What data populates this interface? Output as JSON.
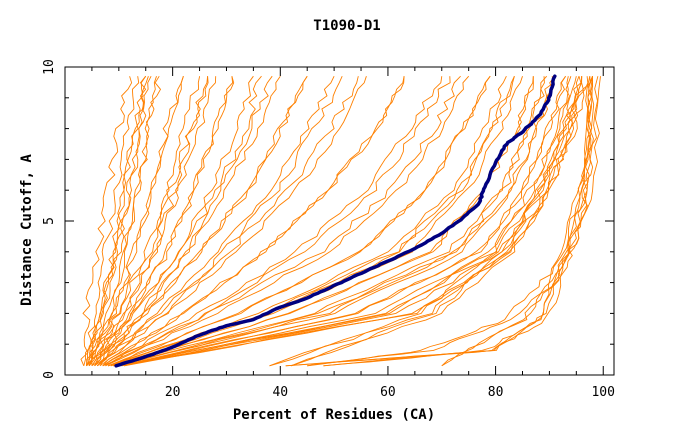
{
  "chart_data": {
    "type": "line",
    "title": "T1090-D1",
    "xlabel": "Percent of Residues (CA)",
    "ylabel": "Distance Cutoff, A",
    "xlim": [
      0,
      102
    ],
    "ylim": [
      0,
      10
    ],
    "x_ticks": [
      0,
      20,
      40,
      60,
      80,
      100
    ],
    "y_ticks": [
      0,
      5,
      10
    ],
    "x_tick_labels": [
      "0",
      "20",
      "40",
      "60",
      "80",
      "100"
    ],
    "y_tick_labels": [
      "0",
      "5",
      "10"
    ],
    "grid": false,
    "legend": "none",
    "highlight_color": "#000080",
    "background_color": "#ff8000",
    "background_models": [
      {
        "x": [
          3.5,
          5.5,
          7.5,
          9.5,
          11.5,
          13.5
        ],
        "y": [
          0.3,
          2.0,
          4.0,
          6.0,
          8.0,
          9.7
        ]
      },
      {
        "x": [
          4.0,
          6.5,
          9.0,
          11.0,
          13.0,
          15.0
        ],
        "y": [
          0.3,
          2.0,
          4.0,
          6.0,
          8.0,
          9.7
        ]
      },
      {
        "x": [
          4.0,
          7.0,
          10.0,
          12.0,
          14.0,
          16.0
        ],
        "y": [
          0.3,
          2.0,
          4.0,
          6.0,
          8.0,
          9.7
        ]
      },
      {
        "x": [
          4.5,
          8.0,
          11.0,
          13.5,
          15.5,
          17.0
        ],
        "y": [
          0.3,
          2.0,
          4.0,
          6.0,
          8.0,
          9.7
        ]
      },
      {
        "x": [
          4.0,
          9.0,
          13.0,
          16.0,
          19.0,
          22.0
        ],
        "y": [
          0.3,
          2.0,
          4.0,
          6.0,
          8.0,
          9.7
        ]
      },
      {
        "x": [
          4.5,
          10.0,
          15.0,
          19.0,
          22.0,
          25.0
        ],
        "y": [
          0.3,
          2.0,
          4.0,
          6.0,
          8.0,
          9.7
        ]
      },
      {
        "x": [
          5.0,
          11.0,
          17.0,
          21.0,
          25.0,
          28.0
        ],
        "y": [
          0.3,
          2.0,
          4.0,
          6.0,
          8.0,
          9.7
        ]
      },
      {
        "x": [
          5.0,
          12.0,
          19.0,
          24.0,
          28.0,
          31.0
        ],
        "y": [
          0.3,
          2.0,
          4.0,
          6.0,
          8.0,
          9.7
        ]
      },
      {
        "x": [
          5.5,
          13.0,
          21.0,
          27.0,
          32.0,
          35.0
        ],
        "y": [
          0.3,
          2.0,
          4.0,
          6.0,
          8.0,
          9.7
        ]
      },
      {
        "x": [
          5.5,
          14.0,
          23.0,
          30.0,
          36.0,
          40.0
        ],
        "y": [
          0.3,
          2.0,
          4.0,
          6.0,
          8.0,
          9.7
        ]
      },
      {
        "x": [
          6.0,
          15.0,
          25.0,
          34.0,
          40.0,
          45.0
        ],
        "y": [
          0.3,
          2.0,
          4.0,
          6.0,
          8.0,
          9.7
        ]
      },
      {
        "x": [
          6.0,
          17.0,
          28.0,
          38.0,
          45.0,
          50.0
        ],
        "y": [
          0.3,
          2.0,
          4.0,
          6.0,
          8.0,
          9.7
        ]
      },
      {
        "x": [
          6.5,
          19.0,
          32.0,
          43.0,
          51.0,
          56.0
        ],
        "y": [
          0.3,
          2.0,
          4.0,
          6.0,
          8.0,
          9.7
        ]
      },
      {
        "x": [
          7.0,
          22.0,
          37.0,
          49.0,
          58.0,
          63.0
        ],
        "y": [
          0.3,
          2.0,
          4.0,
          6.0,
          8.0,
          9.7
        ]
      },
      {
        "x": [
          7.0,
          25.0,
          43.0,
          56.0,
          64.0,
          70.0
        ],
        "y": [
          0.3,
          2.0,
          4.0,
          6.0,
          8.0,
          9.7
        ]
      },
      {
        "x": [
          7.5,
          28.0,
          49.0,
          62.0,
          70.0,
          75.0
        ],
        "y": [
          0.3,
          2.0,
          4.0,
          6.0,
          8.0,
          9.7
        ]
      },
      {
        "x": [
          8.0,
          32.0,
          55.0,
          67.0,
          74.0,
          79.0
        ],
        "y": [
          0.3,
          2.0,
          4.0,
          6.0,
          8.0,
          9.7
        ]
      },
      {
        "x": [
          8.0,
          36.0,
          60.0,
          72.0,
          78.0,
          82.0
        ],
        "y": [
          0.3,
          2.0,
          4.0,
          6.0,
          8.0,
          9.7
        ]
      },
      {
        "x": [
          8.5,
          39.0,
          64.0,
          75.0,
          81.0,
          85.0
        ],
        "y": [
          0.3,
          2.0,
          4.0,
          6.0,
          8.0,
          9.7
        ]
      },
      {
        "x": [
          9.0,
          42.0,
          68.0,
          78.0,
          84.0,
          87.0
        ],
        "y": [
          0.3,
          2.0,
          4.0,
          6.0,
          8.0,
          9.7
        ]
      },
      {
        "x": [
          9.0,
          46.0,
          71.0,
          81.0,
          86.0,
          89.0
        ],
        "y": [
          0.3,
          2.0,
          4.0,
          6.0,
          8.0,
          9.7
        ]
      },
      {
        "x": [
          9.5,
          50.0,
          74.0,
          83.0,
          88.0,
          91.0
        ],
        "y": [
          0.3,
          2.0,
          4.0,
          6.0,
          8.0,
          9.7
        ]
      },
      {
        "x": [
          10.0,
          54.0,
          77.0,
          85.0,
          90.0,
          93.0
        ],
        "y": [
          0.3,
          2.0,
          4.0,
          6.0,
          8.0,
          9.7
        ]
      },
      {
        "x": [
          10.0,
          58.0,
          79.0,
          87.0,
          92.0,
          94.0
        ],
        "y": [
          0.3,
          2.0,
          4.0,
          6.0,
          8.0,
          9.7
        ]
      },
      {
        "x": [
          10.5,
          62.0,
          81.0,
          88.0,
          93.0,
          95.0
        ],
        "y": [
          0.3,
          2.0,
          4.0,
          6.0,
          8.0,
          9.7
        ]
      },
      {
        "x": [
          11.0,
          65.0,
          83.0,
          90.0,
          94.0,
          96.0
        ],
        "y": [
          0.3,
          2.0,
          4.0,
          6.0,
          8.0,
          9.7
        ]
      },
      {
        "x": [
          38.0,
          66.0,
          80.0,
          88.0,
          93.0,
          96.0
        ],
        "y": [
          0.3,
          2.0,
          4.0,
          6.0,
          8.0,
          9.7
        ]
      },
      {
        "x": [
          42.0,
          70.0,
          83.0,
          90.0,
          94.0,
          97.0
        ],
        "y": [
          0.3,
          2.0,
          4.0,
          6.0,
          8.0,
          9.7
        ]
      },
      {
        "x": [
          41.0,
          80.0,
          89.0,
          94.0,
          97.0,
          98.0
        ],
        "y": [
          0.3,
          0.8,
          2.0,
          4.5,
          7.0,
          9.7
        ]
      },
      {
        "x": [
          48.0,
          78.0,
          88.0,
          92.0,
          96.0,
          97.5
        ],
        "y": [
          0.3,
          0.8,
          1.8,
          4.0,
          6.5,
          9.7
        ]
      },
      {
        "x": [
          45.0,
          68.0,
          83.0,
          93.0,
          98.0,
          99.5
        ],
        "y": [
          0.3,
          0.8,
          1.8,
          3.5,
          6.0,
          9.7
        ]
      },
      {
        "x": [
          70.0,
          85.0,
          93.0,
          96.0,
          97.5,
          98.0
        ],
        "y": [
          0.3,
          1.8,
          3.5,
          5.0,
          7.0,
          9.7
        ]
      }
    ],
    "series": [
      {
        "x": [
          9.5,
          15.0,
          20.0,
          25.0,
          30.0,
          35.0,
          40.0,
          45.0,
          50.0,
          55.0,
          60.0,
          65.0,
          70.0,
          74.0,
          77.0,
          78.0,
          80.0,
          82.0,
          85.0,
          88.0,
          90.0,
          91.0
        ],
        "y": [
          0.3,
          0.6,
          0.9,
          1.3,
          1.6,
          1.8,
          2.2,
          2.5,
          2.9,
          3.3,
          3.7,
          4.1,
          4.6,
          5.1,
          5.6,
          6.1,
          6.9,
          7.5,
          7.9,
          8.4,
          9.0,
          9.7
        ]
      }
    ]
  }
}
